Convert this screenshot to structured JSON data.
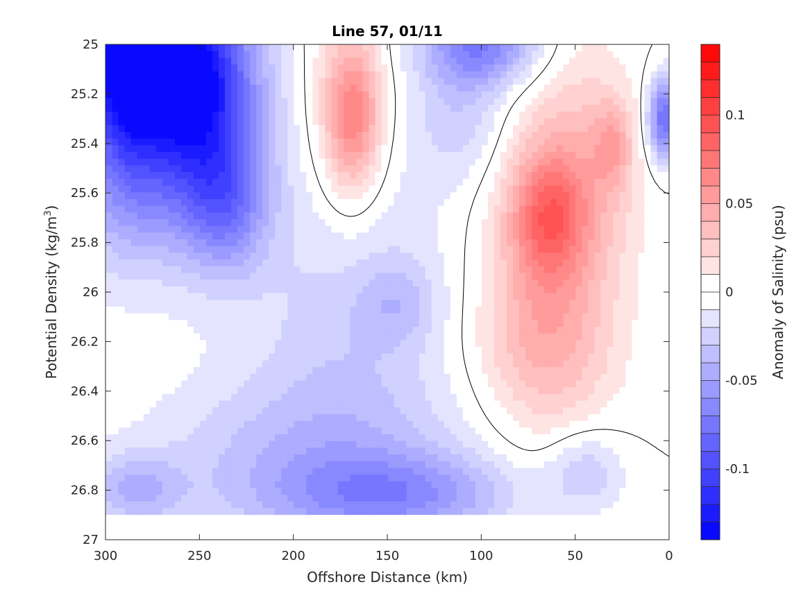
{
  "chart_data": {
    "type": "heatmap",
    "title": "Line 57, 01/11",
    "xlabel": "Offshore Distance (km)",
    "ylabel_main": "Potential Density (kg/m",
    "ylabel_sup": "3",
    "ylabel_close": ")",
    "colorbar_label": "Anomaly of Salinity (psu)",
    "xlim": [
      300,
      0
    ],
    "ylim": [
      25,
      27
    ],
    "x_reversed": true,
    "y_reversed": true,
    "x_ticks": [
      300,
      250,
      200,
      150,
      100,
      50,
      0
    ],
    "x_tick_labels": [
      "300",
      "250",
      "200",
      "150",
      "100",
      "50",
      "0"
    ],
    "y_ticks": [
      25,
      25.2,
      25.4,
      25.6,
      25.8,
      26,
      26.2,
      26.4,
      26.6,
      26.8,
      27
    ],
    "y_tick_labels": [
      "25",
      "25.2",
      "25.4",
      "25.6",
      "25.8",
      "26",
      "26.2",
      "26.4",
      "26.6",
      "26.8",
      "27"
    ],
    "colorbar": {
      "range": [
        -0.14,
        0.14
      ],
      "step": 0.01,
      "ticks": [
        -0.1,
        -0.05,
        0,
        0.05,
        0.1
      ],
      "tick_labels": [
        "-0.1",
        "-0.05",
        "0",
        "0.05",
        "0.1"
      ],
      "negative_color": "#0000ff",
      "positive_color": "#ff0000",
      "zero_color": "#ffffff"
    },
    "data_extent": {
      "x": [
        0,
        300
      ],
      "y": [
        25,
        26.9
      ]
    },
    "anomalies": [
      {
        "x": 275,
        "y": 25.05,
        "sx": 30,
        "sy": 0.22,
        "a": -0.11
      },
      {
        "x": 250,
        "y": 25.25,
        "sx": 22,
        "sy": 0.3,
        "a": -0.07
      },
      {
        "x": 280,
        "y": 25.5,
        "sx": 35,
        "sy": 0.3,
        "a": -0.05
      },
      {
        "x": 235,
        "y": 25.65,
        "sx": 15,
        "sy": 0.2,
        "a": -0.045
      },
      {
        "x": 100,
        "y": 25.0,
        "sx": 22,
        "sy": 0.12,
        "a": -0.07
      },
      {
        "x": 3,
        "y": 25.3,
        "sx": 6,
        "sy": 0.12,
        "a": -0.08
      },
      {
        "x": 290,
        "y": 25.0,
        "sx": 12,
        "sy": 0.4,
        "a": -0.05
      },
      {
        "x": 140,
        "y": 26.82,
        "sx": 45,
        "sy": 0.12,
        "a": -0.045
      },
      {
        "x": 200,
        "y": 26.7,
        "sx": 60,
        "sy": 0.25,
        "a": -0.03
      },
      {
        "x": 170,
        "y": 26.1,
        "sx": 40,
        "sy": 0.6,
        "a": -0.025
      },
      {
        "x": 145,
        "y": 26.05,
        "sx": 15,
        "sy": 0.12,
        "a": -0.02
      },
      {
        "x": 285,
        "y": 26.8,
        "sx": 18,
        "sy": 0.1,
        "a": -0.035
      },
      {
        "x": 45,
        "y": 26.72,
        "sx": 15,
        "sy": 0.12,
        "a": -0.03
      },
      {
        "x": 110,
        "y": 25.3,
        "sx": 18,
        "sy": 0.18,
        "a": -0.025
      },
      {
        "x": 168,
        "y": 25.3,
        "sx": 10,
        "sy": 0.2,
        "a": 0.05
      },
      {
        "x": 172,
        "y": 25.25,
        "sx": 16,
        "sy": 0.35,
        "a": 0.03
      },
      {
        "x": 65,
        "y": 25.7,
        "sx": 14,
        "sy": 0.18,
        "a": 0.055
      },
      {
        "x": 62,
        "y": 25.85,
        "sx": 25,
        "sy": 0.55,
        "a": 0.035
      },
      {
        "x": 70,
        "y": 26.2,
        "sx": 25,
        "sy": 0.2,
        "a": 0.02
      },
      {
        "x": 30,
        "y": 25.4,
        "sx": 7,
        "sy": 0.12,
        "a": 0.03
      },
      {
        "x": 40,
        "y": 25.5,
        "sx": 18,
        "sy": 0.3,
        "a": 0.018
      }
    ]
  }
}
